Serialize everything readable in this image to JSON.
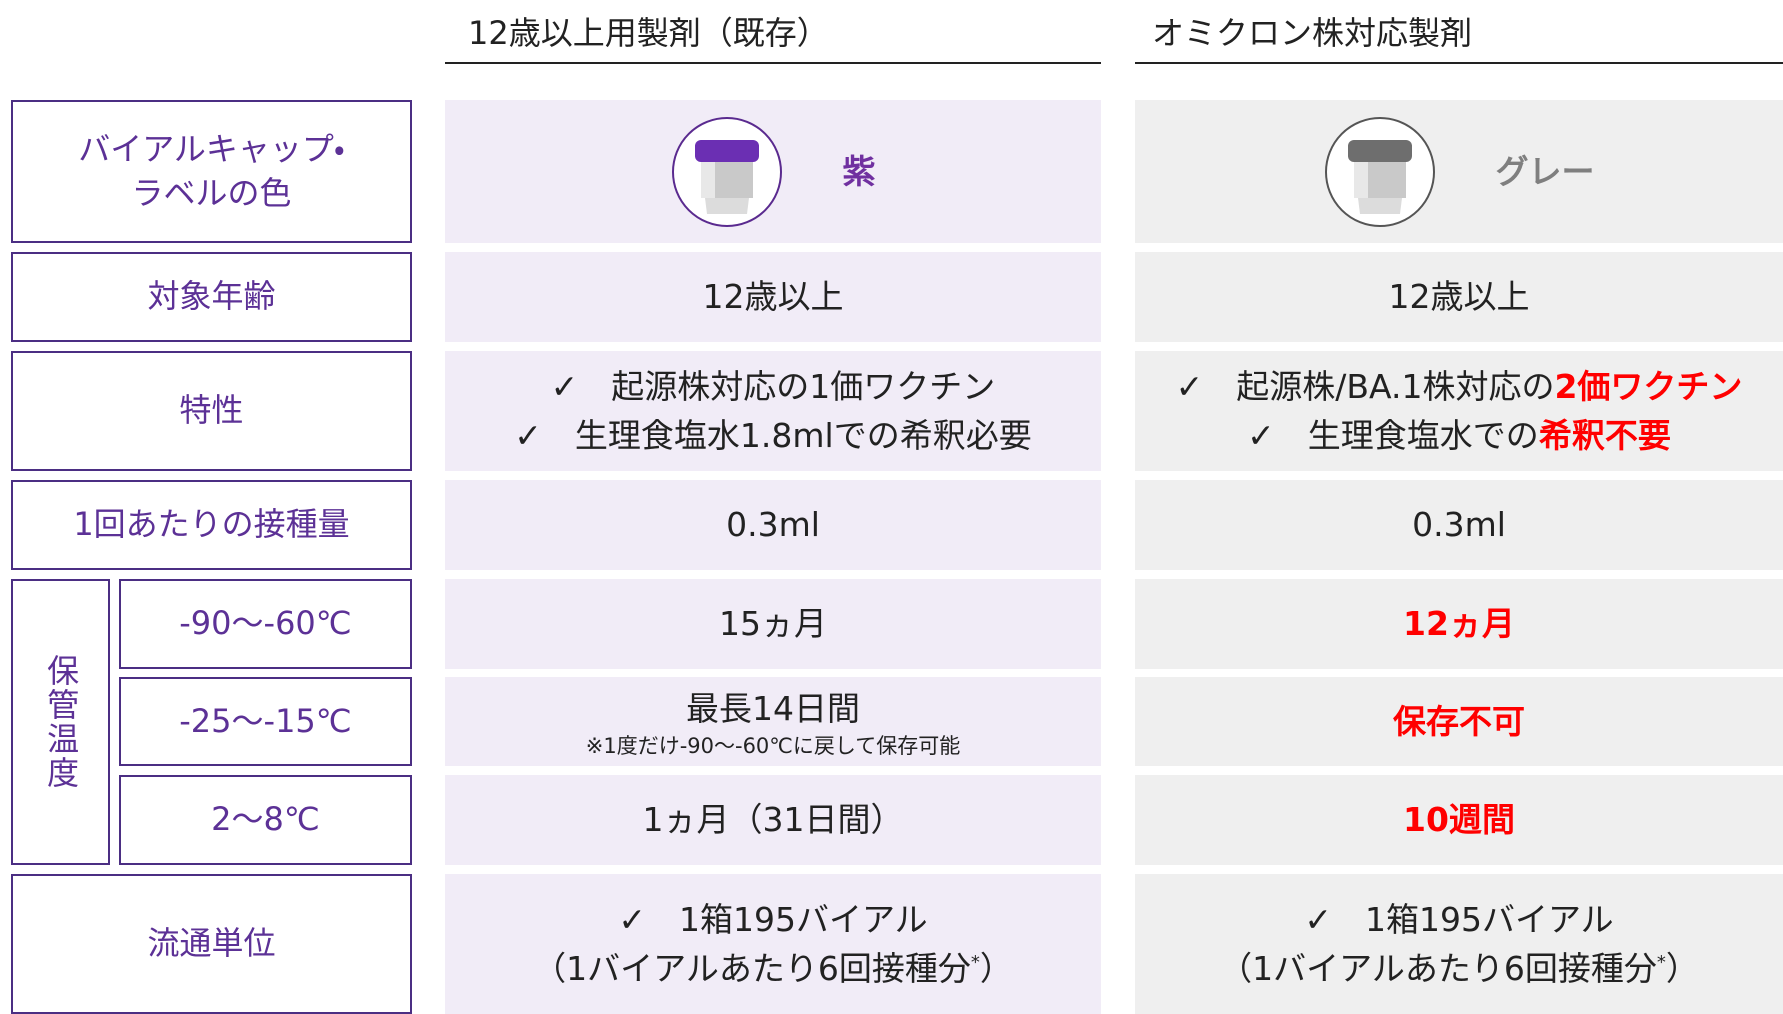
{
  "headers": [
    "12歳以上用製剤（既存）",
    "オミクロン株対応製剤"
  ],
  "rows": [
    {
      "label": [
        "バイアルキャップ・",
        "ラベルの色"
      ],
      "cells": [
        {
          "lines": [
            [
              {
                "text": "紫",
                "color": "#7030a0",
                "bold": true
              }
            ]
          ]
        },
        {
          "lines": [
            [
              {
                "text": "グレー",
                "color": "#7f7f7f",
                "bold": true
              }
            ]
          ]
        }
      ]
    },
    {
      "label": [
        "対象年齢"
      ],
      "cells": [
        {
          "lines": [
            [
              {
                "text": "12歳以上"
              }
            ]
          ]
        },
        {
          "lines": [
            [
              {
                "text": "12歳以上"
              }
            ]
          ]
        }
      ]
    },
    {
      "label": [
        "特性"
      ],
      "cells": [
        {
          "lines": [
            [
              {
                "text": "✓　起源株対応の1価ワクチン"
              }
            ],
            [
              {
                "text": "✓　生理食塩水1.8mlでの希釈必要"
              }
            ]
          ]
        },
        {
          "lines": [
            [
              {
                "text": "✓　起源株/BA.1株対応の"
              },
              {
                "text": "2価ワクチン",
                "color": "#ff0000",
                "bold": true
              }
            ],
            [
              {
                "text": "✓　生理食塩水での"
              },
              {
                "text": "希釈不要",
                "color": "#ff0000",
                "bold": true
              }
            ]
          ]
        }
      ]
    },
    {
      "label": [
        "1回あたりの接種量"
      ],
      "cells": [
        {
          "lines": [
            [
              {
                "text": "0.3ml"
              }
            ]
          ]
        },
        {
          "lines": [
            [
              {
                "text": "0.3ml"
              }
            ]
          ]
        }
      ]
    },
    {
      "label": [
        "保管温度"
      ],
      "subrows": [
        {
          "label": [
            "-90～-60℃"
          ],
          "cells": [
            {
              "lines": [
                [
                  {
                    "text": "15ヵ月"
                  }
                ]
              ]
            },
            {
              "lines": [
                [
                  {
                    "text": "12ヵ月",
                    "color": "#ff0000",
                    "bold": true
                  }
                ]
              ]
            }
          ]
        },
        {
          "label": [
            "-25～-15℃"
          ],
          "cells": [
            {
              "lines": [
                [
                  {
                    "text": "最長14日間"
                  }
                ],
                [
                  {
                    "text": "※1度だけ-90～-60℃に戻して保存可能",
                    "small": true
                  }
                ]
              ]
            },
            {
              "lines": [
                [
                  {
                    "text": "保存不可",
                    "color": "#ff0000",
                    "bold": true
                  }
                ]
              ]
            }
          ]
        },
        {
          "label": [
            "2～8℃"
          ],
          "cells": [
            {
              "lines": [
                [
                  {
                    "text": "1ヵ月（31日間）"
                  }
                ]
              ]
            },
            {
              "lines": [
                [
                  {
                    "text": "10週間",
                    "color": "#ff0000",
                    "bold": true
                  }
                ]
              ]
            }
          ]
        }
      ]
    },
    {
      "label": [
        "流通単位"
      ],
      "cells": [
        {
          "lines": [
            [
              {
                "text": "✓　1箱195バイアル"
              }
            ],
            [
              {
                "text": "（1バイアルあたり6回接種分"
              },
              {
                "text": "*",
                "sup": true
              },
              {
                "text": "）"
              }
            ]
          ]
        },
        {
          "lines": [
            [
              {
                "text": "✓　1箱195バイアル"
              }
            ],
            [
              {
                "text": "（1バイアルあたり6回接種分"
              },
              {
                "text": "*",
                "sup": true
              },
              {
                "text": "）"
              }
            ]
          ]
        }
      ]
    }
  ]
}
